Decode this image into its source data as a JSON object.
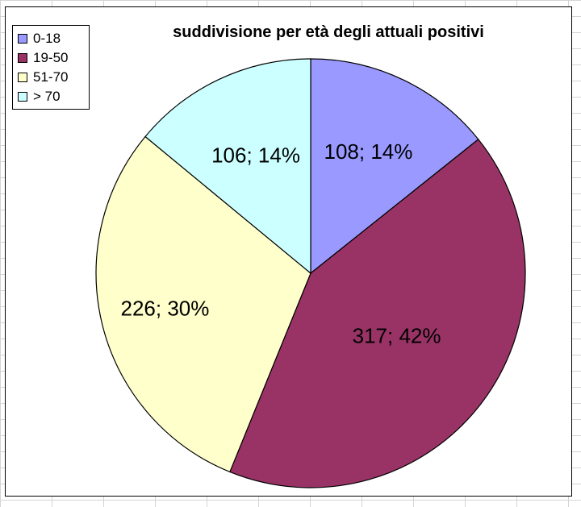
{
  "chart_data": {
    "type": "pie",
    "title": "suddivisione per età degli attuali positivi",
    "legend_position": "top-left",
    "categories": [
      "0-18",
      "19-50",
      "51-70",
      "> 70"
    ],
    "values": [
      108,
      317,
      226,
      106
    ],
    "percentages": [
      14,
      42,
      30,
      14
    ],
    "labels": [
      "108; 14%",
      "317; 42%",
      "226; 30%",
      "106; 14%"
    ],
    "colors": [
      "#9999ff",
      "#993366",
      "#ffffcc",
      "#ccffff"
    ]
  }
}
